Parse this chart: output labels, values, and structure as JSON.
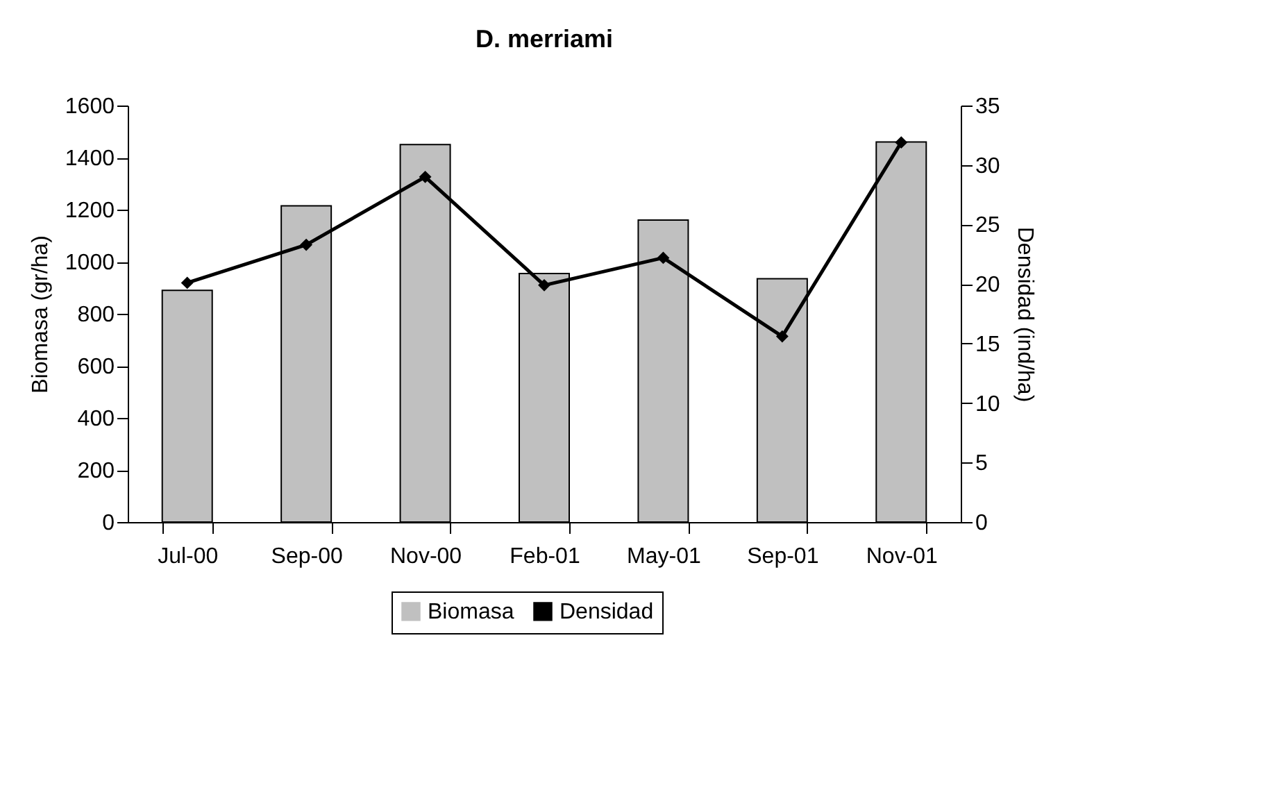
{
  "chart_data": {
    "type": "bar",
    "title": "D. merriami",
    "categories": [
      "Jul-00",
      "Sep-00",
      "Nov-00",
      "Feb-01",
      "May-01",
      "Sep-01",
      "Nov-01"
    ],
    "ylabel": "Biomasa (gr/ha)",
    "y2label": "Densidad (ind/ha)",
    "ylim": [
      0,
      1600
    ],
    "yticks": [
      0,
      200,
      400,
      600,
      800,
      1000,
      1200,
      1400,
      1600
    ],
    "y2lim": [
      0,
      35
    ],
    "y2ticks": [
      0,
      5,
      10,
      15,
      20,
      25,
      30,
      35
    ],
    "legend": "bottom",
    "grid": false,
    "marker": "diamond",
    "line_style": "solid",
    "series": [
      {
        "name": "Biomasa",
        "color": "#c0c0c0",
        "values": [
          890,
          1215,
          1450,
          955,
          1160,
          935,
          1460
        ]
      },
      {
        "name": "Densidad",
        "type": "line",
        "axis": "y2",
        "color": "#000000",
        "values": [
          20.1,
          23.3,
          29.0,
          19.9,
          22.2,
          15.6,
          31.9
        ]
      }
    ]
  }
}
